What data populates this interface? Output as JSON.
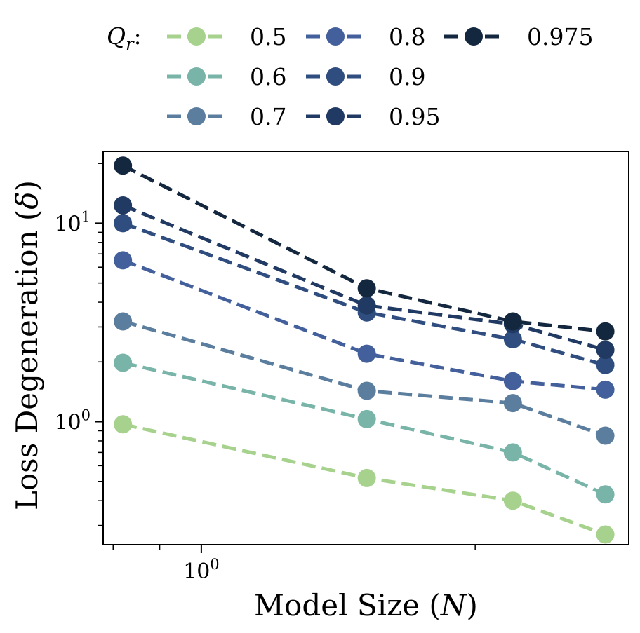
{
  "chart_data": {
    "type": "line",
    "xscale": "log",
    "yscale": "log",
    "xlabel_prefix": "Model Size (",
    "xlabel_symbol": "N",
    "xlabel_suffix": ")",
    "ylabel_prefix": "Loss Degeneration (",
    "ylabel_symbol": "δ",
    "ylabel_suffix": ")",
    "xlim": [
      0.78,
      2.95
    ],
    "ylim": [
      0.24,
      23
    ],
    "x_major_ticks": [
      {
        "value": 1,
        "base": "10",
        "exp": "0"
      }
    ],
    "y_major_ticks": [
      {
        "value": 1,
        "base": "10",
        "exp": "0"
      },
      {
        "value": 10,
        "base": "10",
        "exp": "1"
      }
    ],
    "x": [
      0.82,
      1.52,
      2.2,
      2.78
    ],
    "legend": {
      "title_symbol": "Q",
      "title_sub": "r",
      "title_suffix": ":",
      "placement": "top"
    },
    "series": [
      {
        "name": "0.5",
        "color": "#a7d28d",
        "values": [
          0.97,
          0.52,
          0.4,
          0.27
        ]
      },
      {
        "name": "0.6",
        "color": "#79b4a9",
        "values": [
          1.98,
          1.03,
          0.7,
          0.43
        ]
      },
      {
        "name": "0.7",
        "color": "#5b7e9e",
        "values": [
          3.2,
          1.43,
          1.24,
          0.85
        ]
      },
      {
        "name": "0.8",
        "color": "#43609c",
        "values": [
          6.5,
          2.2,
          1.6,
          1.45
        ]
      },
      {
        "name": "0.9",
        "color": "#2f4d7f",
        "values": [
          10.0,
          3.55,
          2.6,
          1.93
        ]
      },
      {
        "name": "0.95",
        "color": "#213a63",
        "values": [
          12.3,
          3.85,
          3.1,
          2.3
        ]
      },
      {
        "name": "0.975",
        "color": "#13273f",
        "values": [
          19.5,
          4.7,
          3.2,
          2.85
        ]
      }
    ]
  }
}
